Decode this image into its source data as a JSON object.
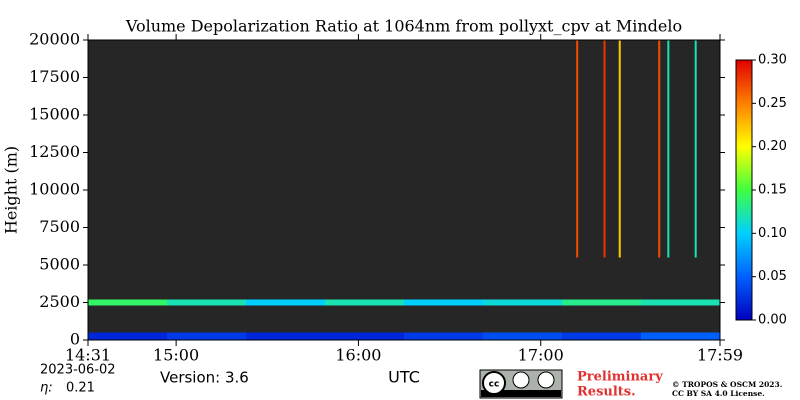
{
  "chart_data": {
    "type": "heatmap",
    "title": "Volume Depolarization Ratio at 1064nm from pollyxt_cpv at Mindelo",
    "ylabel": "Height (m)",
    "xlabel": "UTC",
    "date": "2023-06-02",
    "eta_label": "η:",
    "eta_value": "0.21",
    "version": "Version: 3.6",
    "preliminary": [
      "Preliminary",
      "Results."
    ],
    "copyright": [
      "© TROPOS & OSCM 2023.",
      "CC BY SA 4.0 License."
    ],
    "xlim": [
      871,
      1079
    ],
    "xticks": [
      {
        "value": 871,
        "label": "14:31"
      },
      {
        "value": 900,
        "label": "15:00"
      },
      {
        "value": 960,
        "label": "16:00"
      },
      {
        "value": 1020,
        "label": "17:00"
      },
      {
        "value": 1079,
        "label": "17:59"
      }
    ],
    "ylim": [
      0,
      20000
    ],
    "yticks": [
      0,
      2500,
      5000,
      7500,
      10000,
      12500,
      15000,
      17500,
      20000
    ],
    "x_edges": [
      871,
      897,
      923,
      949,
      975,
      1001,
      1027,
      1053,
      1079
    ],
    "y_edges": [
      0,
      500,
      1200,
      2300,
      2700,
      5500,
      20000
    ],
    "z": [
      [
        0.02,
        0.03,
        0.02,
        0.02,
        0.03,
        0.04,
        0.03,
        0.05
      ],
      [
        null,
        null,
        null,
        null,
        null,
        null,
        null,
        null
      ],
      [
        null,
        null,
        null,
        null,
        null,
        null,
        null,
        null
      ],
      [
        0.14,
        0.12,
        0.1,
        0.12,
        0.1,
        0.11,
        0.13,
        0.12
      ],
      [
        null,
        null,
        null,
        null,
        null,
        null,
        null,
        null
      ],
      [
        null,
        null,
        null,
        null,
        null,
        null,
        null,
        null
      ]
    ],
    "streaks": {
      "x": [
        1032,
        1041,
        1046,
        1059,
        1062,
        1071
      ],
      "values": [
        0.27,
        0.28,
        0.22,
        0.27,
        0.12,
        0.12
      ]
    },
    "mask_color": "#262626",
    "clim": [
      0,
      0.3
    ],
    "colormap": [
      "#0000c0",
      "#0060ff",
      "#00d0ff",
      "#40ff40",
      "#ffff00",
      "#ff8000",
      "#e00000"
    ],
    "cticks": [
      {
        "value": 0,
        "label": "0.00"
      },
      {
        "value": 0.05,
        "label": "0.05"
      },
      {
        "value": 0.1,
        "label": "0.10"
      },
      {
        "value": 0.15,
        "label": "0.15"
      },
      {
        "value": 0.2,
        "label": "0.20"
      },
      {
        "value": 0.25,
        "label": "0.25"
      },
      {
        "value": 0.3,
        "label": "0.30"
      }
    ]
  }
}
